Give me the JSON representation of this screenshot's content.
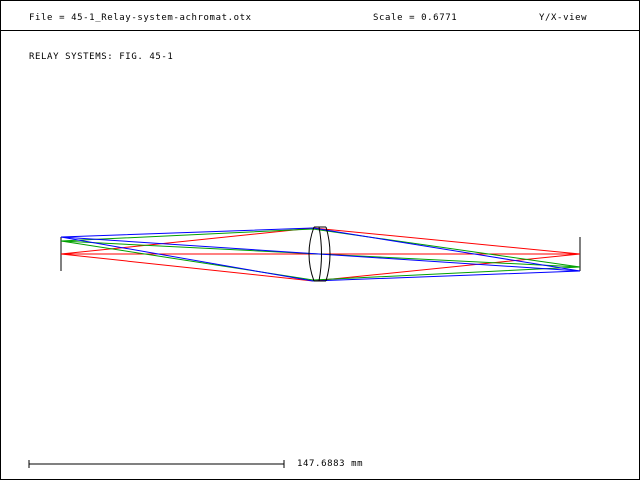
{
  "header": {
    "file_label": "File = 45-1_Relay-system-achromat.otx",
    "scale_label": "Scale = 0.6771",
    "view_label": "Y/X-view"
  },
  "plot": {
    "title": "RELAY SYSTEMS: FIG. 45-1"
  },
  "scale_bar": {
    "value_label": "147.6883 mm"
  },
  "colors": {
    "ray_red": "#ff0000",
    "ray_green": "#00a000",
    "ray_blue": "#0000ff",
    "lens": "#000000",
    "background": "#ffffff"
  }
}
